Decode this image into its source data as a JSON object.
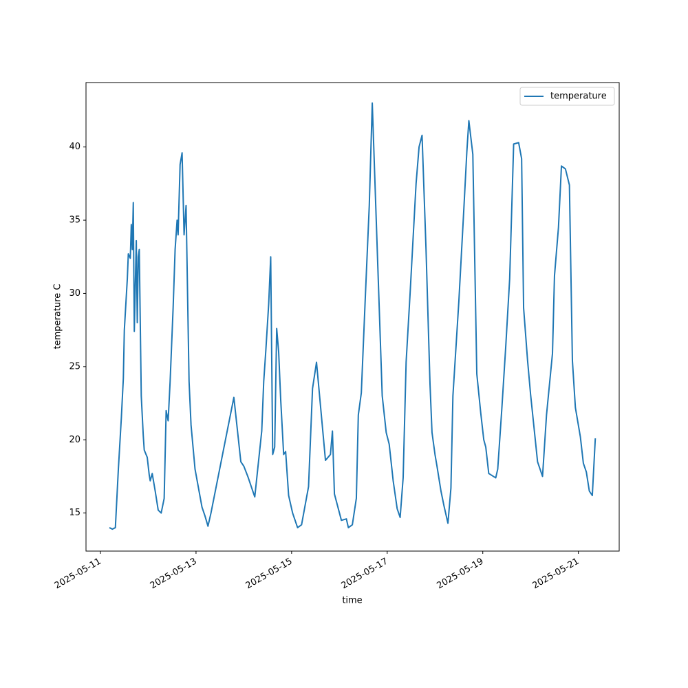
{
  "chart_data": {
    "type": "line",
    "xlabel": "time",
    "ylabel": "temperature C",
    "x": [
      "2025-05-11T04:30",
      "2025-05-11T06:00",
      "2025-05-11T07:30",
      "2025-05-11T09:00",
      "2025-05-11T10:30",
      "2025-05-11T11:30",
      "2025-05-11T12:00",
      "2025-05-11T13:30",
      "2025-05-11T14:00",
      "2025-05-11T15:00",
      "2025-05-11T15:30",
      "2025-05-11T16:00",
      "2025-05-11T16:30",
      "2025-05-11T17:00",
      "2025-05-11T18:00",
      "2025-05-11T18:30",
      "2025-05-11T19:00",
      "2025-05-11T19:30",
      "2025-05-11T20:30",
      "2025-05-11T21:30",
      "2025-05-11T22:00",
      "2025-05-11T23:30",
      "2025-05-12T00:30",
      "2025-05-12T01:00",
      "2025-05-12T02:00",
      "2025-05-12T03:30",
      "2025-05-12T05:00",
      "2025-05-12T06:30",
      "2025-05-12T08:00",
      "2025-05-12T09:00",
      "2025-05-12T10:00",
      "2025-05-12T11:00",
      "2025-05-12T12:30",
      "2025-05-12T13:30",
      "2025-05-12T14:30",
      "2025-05-12T15:00",
      "2025-05-12T16:00",
      "2025-05-12T17:00",
      "2025-05-12T18:00",
      "2025-05-12T19:00",
      "2025-05-12T20:30",
      "2025-05-12T21:30",
      "2025-05-12T23:30",
      "2025-05-13T03:00",
      "2025-05-13T04:30",
      "2025-05-13T06:00",
      "2025-05-13T07:30",
      "2025-05-13T19:00",
      "2025-05-13T22:30",
      "2025-05-14T00:00",
      "2025-05-14T02:00",
      "2025-05-14T05:30",
      "2025-05-14T09:00",
      "2025-05-14T10:00",
      "2025-05-14T11:00",
      "2025-05-14T12:30",
      "2025-05-14T13:30",
      "2025-05-14T14:30",
      "2025-05-14T15:30",
      "2025-05-14T16:30",
      "2025-05-14T17:30",
      "2025-05-14T18:30",
      "2025-05-14T20:00",
      "2025-05-14T21:00",
      "2025-05-14T22:30",
      "2025-05-15T00:30",
      "2025-05-15T03:00",
      "2025-05-15T05:00",
      "2025-05-15T08:30",
      "2025-05-15T10:30",
      "2025-05-15T12:30",
      "2025-05-15T17:00",
      "2025-05-15T19:30",
      "2025-05-15T20:30",
      "2025-05-15T21:30",
      "2025-05-16T01:00",
      "2025-05-16T03:30",
      "2025-05-16T04:30",
      "2025-05-16T06:30",
      "2025-05-16T08:30",
      "2025-05-16T09:30",
      "2025-05-16T11:00",
      "2025-05-16T13:00",
      "2025-05-16T15:00",
      "2025-05-16T16:30",
      "2025-05-16T18:30",
      "2025-05-16T21:30",
      "2025-05-16T23:30",
      "2025-05-17T01:00",
      "2025-05-17T03:00",
      "2025-05-17T05:00",
      "2025-05-17T06:30",
      "2025-05-17T08:00",
      "2025-05-17T09:30",
      "2025-05-17T11:30",
      "2025-05-17T14:30",
      "2025-05-17T16:00",
      "2025-05-17T17:30",
      "2025-05-17T19:30",
      "2025-05-17T21:30",
      "2025-05-17T22:30",
      "2025-05-18T00:00",
      "2025-05-18T01:00",
      "2025-05-18T03:00",
      "2025-05-18T04:30",
      "2025-05-18T06:30",
      "2025-05-18T08:00",
      "2025-05-18T09:00",
      "2025-05-18T12:00",
      "2025-05-18T14:30",
      "2025-05-18T16:00",
      "2025-05-18T17:00",
      "2025-05-18T19:00",
      "2025-05-18T21:00",
      "2025-05-18T23:00",
      "2025-05-19T00:30",
      "2025-05-19T01:30",
      "2025-05-19T03:00",
      "2025-05-19T06:30",
      "2025-05-19T07:30",
      "2025-05-19T09:30",
      "2025-05-19T11:30",
      "2025-05-19T13:30",
      "2025-05-19T15:30",
      "2025-05-19T18:00",
      "2025-05-19T19:30",
      "2025-05-19T20:30",
      "2025-05-19T22:30",
      "2025-05-20T00:00",
      "2025-05-20T03:30",
      "2025-05-20T06:00",
      "2025-05-20T08:00",
      "2025-05-20T11:00",
      "2025-05-20T12:00",
      "2025-05-20T14:00",
      "2025-05-20T15:30",
      "2025-05-20T17:30",
      "2025-05-20T19:30",
      "2025-05-20T21:00",
      "2025-05-20T22:30",
      "2025-05-21T01:00",
      "2025-05-21T02:30",
      "2025-05-21T04:00",
      "2025-05-21T05:30",
      "2025-05-21T07:00",
      "2025-05-21T08:30"
    ],
    "series": [
      {
        "name": "temperature",
        "color": "#1f77b4",
        "values": [
          14.0,
          13.9,
          14.0,
          18,
          21.5,
          24.2,
          27.5,
          31,
          32.7,
          32.4,
          34.7,
          33,
          36.2,
          27.4,
          33.6,
          28,
          32.5,
          33,
          23,
          20.3,
          19.3,
          18.8,
          17.6,
          17.2,
          17.7,
          16.5,
          15.2,
          15.0,
          16,
          22,
          21.3,
          24,
          29,
          33,
          35,
          34,
          38.8,
          39.6,
          34,
          36,
          24,
          21,
          18,
          15.4,
          14.8,
          14.1,
          15,
          22.9,
          18.5,
          18.2,
          17.5,
          16.1,
          20.6,
          24,
          26,
          29.3,
          32.5,
          19,
          19.5,
          27.6,
          26,
          22.8,
          19,
          19.2,
          16.2,
          15,
          14.0,
          14.2,
          16.8,
          23.5,
          25.3,
          18.6,
          19,
          20.6,
          16.3,
          14.5,
          14.6,
          14.0,
          14.2,
          16,
          21.7,
          23.2,
          29.7,
          36,
          43,
          35,
          23,
          20.5,
          19.7,
          17.2,
          15.3,
          14.7,
          17.4,
          25.3,
          30,
          37.5,
          40,
          40.8,
          33,
          23.8,
          20.5,
          19,
          18.2,
          16.5,
          15.5,
          14.3,
          16.7,
          23,
          29.5,
          35.8,
          39.7,
          41.8,
          39.5,
          24.5,
          21.8,
          20,
          19.5,
          17.7,
          17.4,
          18,
          22,
          26.3,
          31,
          40.2,
          40.3,
          39.2,
          29,
          25.4,
          23.1,
          18.5,
          17.5,
          21.7,
          25.9,
          31.2,
          34.5,
          38.7,
          38.5,
          37.4,
          25.4,
          22.2,
          20.2,
          18.4,
          17.8,
          16.5,
          16.2,
          20.1
        ]
      }
    ],
    "xlim": [
      "2025-05-10T16:45",
      "2025-05-21T20:30"
    ],
    "xticks": [
      "2025-05-11",
      "2025-05-13",
      "2025-05-15",
      "2025-05-17",
      "2025-05-19",
      "2025-05-21"
    ],
    "ylim": [
      12.4,
      44.4
    ],
    "yticks": [
      15,
      20,
      25,
      30,
      35,
      40
    ],
    "grid": false,
    "legend": "upper right"
  }
}
